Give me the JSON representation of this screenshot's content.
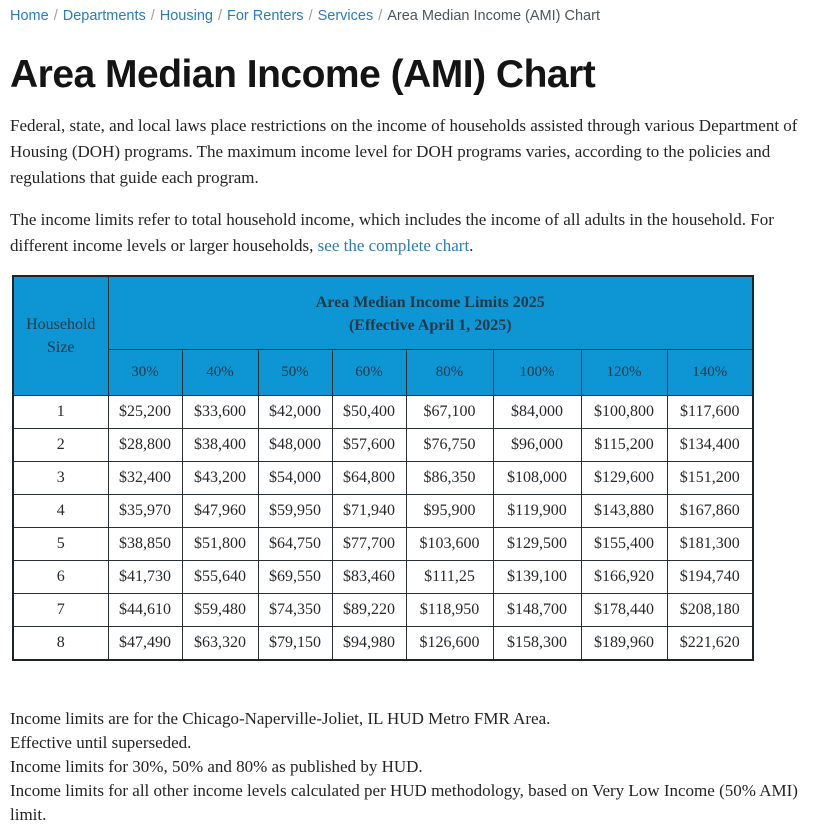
{
  "breadcrumb": {
    "separator": "/",
    "items": [
      {
        "label": "Home"
      },
      {
        "label": "Departments"
      },
      {
        "label": "Housing"
      },
      {
        "label": "For Renters"
      },
      {
        "label": "Services"
      }
    ],
    "current": "Area Median Income (AMI) Chart"
  },
  "page": {
    "title": "Area Median Income (AMI) Chart",
    "intro_paragraph": "Federal, state, and local laws place restrictions on the income of households assisted through various Department of Housing (DOH) programs. The maximum income level for DOH programs varies, according to the policies and regulations that guide each program.",
    "limits_text_before_link": "The income limits refer to total household income, which includes the income of all adults in the household. For different income levels or larger households, ",
    "limits_link_text": "see the complete chart",
    "limits_text_after_link": "."
  },
  "table": {
    "corner_header": "Household Size",
    "title_line1": "Area Median Income Limits 2025",
    "title_line2": "(Effective April 1, 2025)",
    "column_headers": [
      "30%",
      "40%",
      "50%",
      "60%",
      "80%",
      "100%",
      "120%",
      "140%"
    ],
    "rows": [
      {
        "household_size": "1",
        "values": [
          "$25,200",
          "$33,600",
          "$42,000",
          "$50,400",
          "$67,100",
          "$84,000",
          "$100,800",
          "$117,600"
        ]
      },
      {
        "household_size": "2",
        "values": [
          "$28,800",
          "$38,400",
          "$48,000",
          "$57,600",
          "$76,750",
          "$96,000",
          "$115,200",
          "$134,400"
        ]
      },
      {
        "household_size": "3",
        "values": [
          "$32,400",
          "$43,200",
          "$54,000",
          "$64,800",
          "$86,350",
          "$108,000",
          "$129,600",
          "$151,200"
        ]
      },
      {
        "household_size": "4",
        "values": [
          "$35,970",
          "$47,960",
          "$59,950",
          "$71,940",
          "$95,900",
          "$119,900",
          "$143,880",
          "$167,860"
        ]
      },
      {
        "household_size": "5",
        "values": [
          "$38,850",
          "$51,800",
          "$64,750",
          "$77,700",
          "$103,600",
          "$129,500",
          "$155,400",
          "$181,300"
        ]
      },
      {
        "household_size": "6",
        "values": [
          "$41,730",
          "$55,640",
          "$69,550",
          "$83,460",
          "$111,25",
          "$139,100",
          "$166,920",
          "$194,740"
        ]
      },
      {
        "household_size": "7",
        "values": [
          "$44,610",
          "$59,480",
          "$74,350",
          "$89,220",
          "$118,950",
          "$148,700",
          "$178,440",
          "$208,180"
        ]
      },
      {
        "household_size": "8",
        "values": [
          "$47,490",
          "$63,320",
          "$79,150",
          "$94,980",
          "$126,600",
          "$158,300",
          "$189,960",
          "$221,620"
        ]
      }
    ]
  },
  "notes": {
    "lines": [
      "Income limits are for the Chicago-Naperville-Joliet, IL HUD Metro FMR Area.",
      "Effective until superseded.",
      "Income limits for 30%, 50% and 80% as published by HUD.",
      "Income limits for all other income levels calculated per HUD methodology, based on Very Low Income (50% AMI) limit."
    ]
  },
  "colors": {
    "table_header_blue": "#0e95d3",
    "table_header_text": "#1e3948",
    "link_blue": "#2b7cb9",
    "body_text": "#242424"
  }
}
